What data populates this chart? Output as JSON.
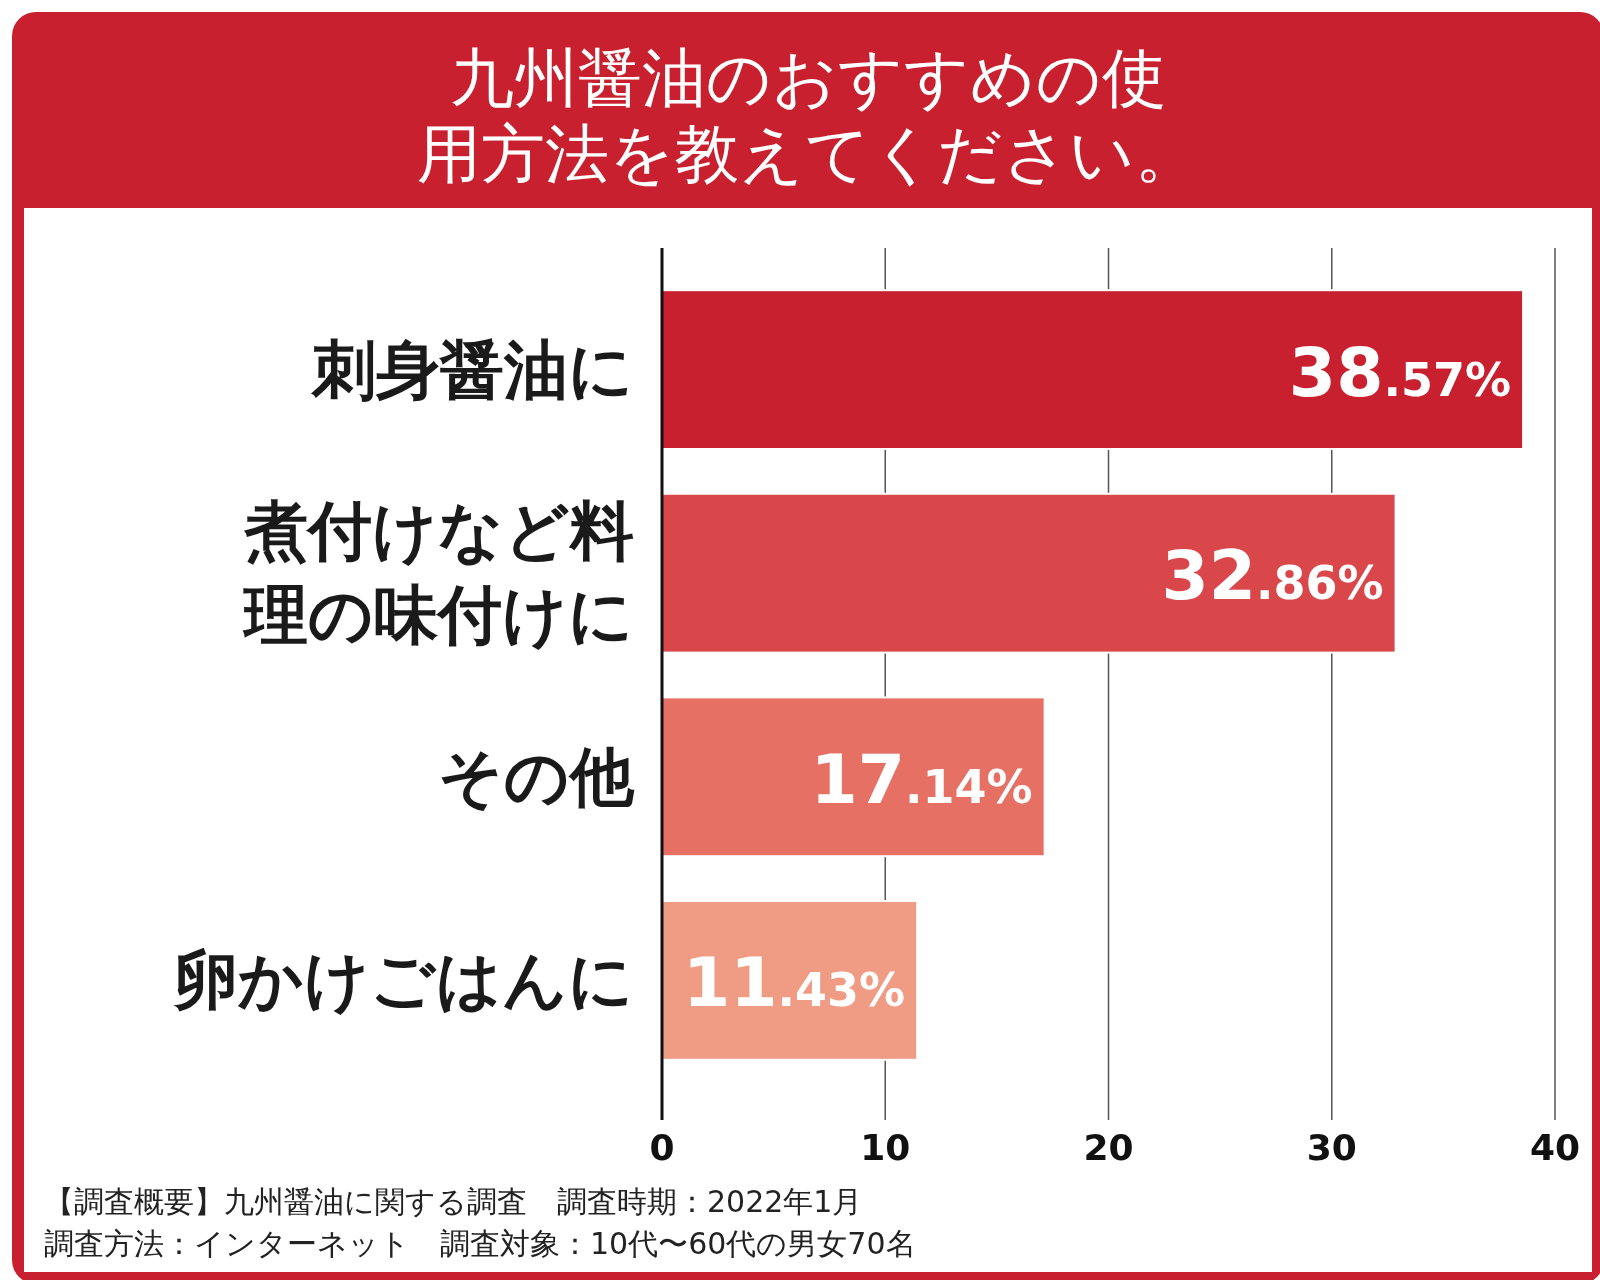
{
  "chart_data": {
    "type": "bar",
    "orientation": "horizontal",
    "title": "九州醤油のおすすめの使用方法を教えてください。",
    "categories": [
      "刺身醤油に",
      "煮付けなど料理の味付けに",
      "その他",
      "卵かけごはんに"
    ],
    "values": [
      38.57,
      32.86,
      17.14,
      11.43
    ],
    "colors": [
      "#c8202e",
      "#d9474a",
      "#e57063",
      "#f09c84"
    ],
    "value_labels": [
      "38.57%",
      "32.86%",
      "17.14%",
      "11.43%"
    ],
    "xlim": [
      0,
      40
    ],
    "xticks": [
      0,
      10,
      20,
      30,
      40
    ],
    "grid": "x",
    "annotations": [
      "【調査概要】九州醤油に関する調査　調査時期：2022年1月",
      "調査方法：インターネット　調査対象：10代〜60代の男女70名"
    ]
  }
}
